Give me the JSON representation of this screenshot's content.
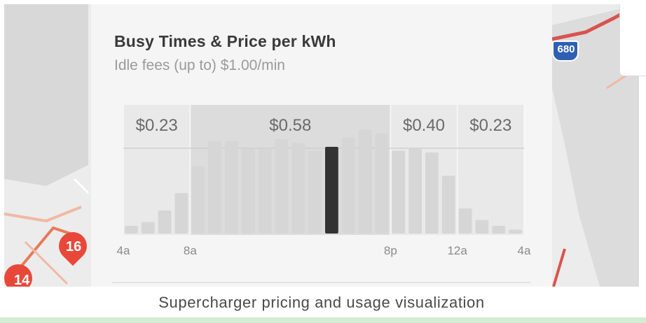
{
  "panel": {
    "title": "Busy Times & Price per kWh",
    "subtitle": "Idle fees (up to) $1.00/min"
  },
  "chart_data": {
    "type": "bar",
    "price_bands": [
      {
        "label": "$0.23",
        "start_hour": 4,
        "end_hour": 8
      },
      {
        "label": "$0.58",
        "start_hour": 8,
        "end_hour": 20
      },
      {
        "label": "$0.40",
        "start_hour": 20,
        "end_hour": 24
      },
      {
        "label": "$0.23",
        "start_hour": 24,
        "end_hour": 28
      }
    ],
    "x_ticks": [
      "4a",
      "8a",
      "8p",
      "12a",
      "4a"
    ],
    "x_tick_hours": [
      4,
      8,
      20,
      24,
      28
    ],
    "hours": [
      4,
      5,
      6,
      7,
      8,
      9,
      10,
      11,
      12,
      13,
      14,
      15,
      16,
      17,
      18,
      19,
      20,
      21,
      22,
      23,
      24,
      25,
      26,
      27
    ],
    "busyness": [
      8,
      12,
      24,
      42,
      70,
      96,
      96,
      88,
      88,
      98,
      94,
      86,
      90,
      100,
      108,
      104,
      86,
      88,
      84,
      60,
      26,
      14,
      8,
      4
    ],
    "current_hour": 16,
    "ylim": [
      0,
      120
    ],
    "grid": false
  },
  "map": {
    "pins": [
      {
        "label": "16",
        "color": "#e8483a"
      },
      {
        "label": "14",
        "color": "#e8483a"
      }
    ],
    "shield_label": "680"
  },
  "caption": "Supercharger pricing and usage visualization",
  "colors": {
    "bar": "#d6d6d6",
    "bar_current": "#333333",
    "band_dark": "#dcdcdc",
    "band_light": "#e9e9e9",
    "price_text": "#6a6a6a",
    "tick_text": "#8a8a8a",
    "pin": "#e8483a"
  }
}
